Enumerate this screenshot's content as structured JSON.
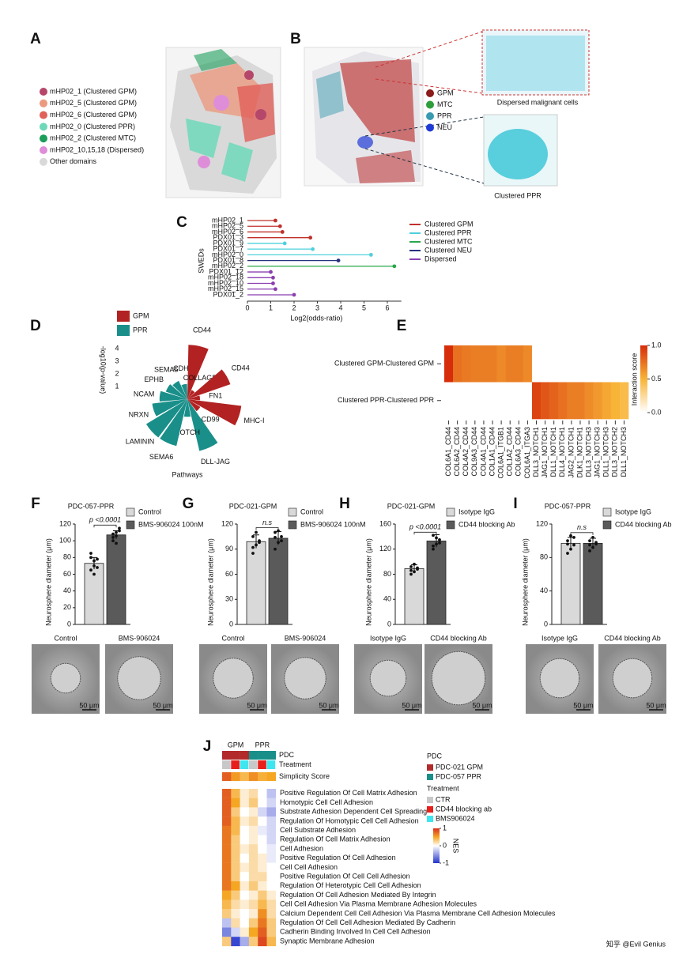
{
  "panel_labels": [
    "A",
    "B",
    "C",
    "D",
    "E",
    "F",
    "G",
    "H",
    "I",
    "J"
  ],
  "panel_a": {
    "legend": [
      {
        "label": "mHP02_1 (Clustered GPM)",
        "color": "#b5476b"
      },
      {
        "label": "mHP02_5 (Clustered GPM)",
        "color": "#eb9a7f"
      },
      {
        "label": "mHP02_6 (Clustered GPM)",
        "color": "#e0605a"
      },
      {
        "label": "mHP02_0 (Clustered PPR)",
        "color": "#6fd8b9"
      },
      {
        "label": "mHP02_2 (Clustered MTC)",
        "color": "#1a9e5a"
      },
      {
        "label": "mHP02_10,15,18 (Dispersed)",
        "color": "#de8ed8"
      },
      {
        "label": "Other domains",
        "color": "#d9d9d9"
      }
    ]
  },
  "panel_b": {
    "legend": [
      {
        "label": "GPM",
        "color": "#8b1a1a"
      },
      {
        "label": "MTC",
        "color": "#2e9e3a"
      },
      {
        "label": "PPR",
        "color": "#3a9bb0"
      },
      {
        "label": "NEU",
        "color": "#1f3bd6"
      }
    ],
    "zoom_captions": [
      "Dispersed malignant cells",
      "Clustered PPR"
    ]
  },
  "chart_data": [
    {
      "type": "lollipop",
      "y_label": "SWEDs",
      "x_label": "Log2(odds-ratio)",
      "categories": [
        "mHP02_1",
        "mHP02_5",
        "mHP02_6",
        "PDX01_3",
        "PDX01_9",
        "PDX01_7",
        "mHP02_0",
        "PDX01_8",
        "mHP02_2",
        "PDX01_12",
        "mHP02_18",
        "mHP02_10",
        "mHP02_15",
        "PDX01_2"
      ],
      "series": [
        {
          "name": "Clustered GPM",
          "color": "#c0302b",
          "values": [
            1.2,
            1.4,
            1.5,
            2.7,
            null,
            null,
            null,
            null,
            null,
            null,
            null,
            null,
            null,
            null
          ]
        },
        {
          "name": "Clustered PPR",
          "color": "#4fd0dc",
          "values": [
            null,
            null,
            null,
            null,
            1.6,
            2.8,
            5.3,
            null,
            null,
            null,
            null,
            null,
            null,
            null
          ]
        },
        {
          "name": "Clustered MTC",
          "color": "#2aa84a",
          "values": [
            null,
            null,
            null,
            null,
            null,
            null,
            null,
            null,
            6.3,
            null,
            null,
            null,
            null,
            null
          ]
        },
        {
          "name": "Clustered NEU",
          "color": "#27327f",
          "values": [
            null,
            null,
            null,
            null,
            null,
            null,
            null,
            3.9,
            null,
            null,
            null,
            null,
            null,
            null
          ]
        },
        {
          "name": "Dispersed",
          "color": "#8a3fb0",
          "values": [
            null,
            null,
            null,
            null,
            null,
            null,
            null,
            null,
            null,
            1.0,
            1.1,
            1.1,
            1.2,
            2.0
          ]
        }
      ],
      "xlim": [
        0,
        6.6
      ],
      "xticks": [
        0,
        1,
        2,
        3,
        4,
        5,
        6
      ]
    },
    {
      "type": "radial_bar",
      "y_label": "-log10(p-value)",
      "x_label": "Pathways",
      "groups": [
        {
          "name": "GPM",
          "color": "#b22222"
        },
        {
          "name": "PPR",
          "color": "#1a8f8a"
        }
      ],
      "categories": [
        "CD44",
        "COLLAGEN",
        "CD44",
        "FN1",
        "MHC-I",
        "CD99",
        "DLL-JAG",
        "NOTCH",
        "SEMA6",
        "LAMININ",
        "NRXN",
        "NCAM",
        "EPHB",
        "SEMA5",
        "CDH"
      ],
      "group_index": [
        0,
        0,
        0,
        0,
        0,
        0,
        1,
        1,
        1,
        1,
        1,
        1,
        1,
        1,
        1
      ],
      "values": [
        4.3,
        0.8,
        3.6,
        1.0,
        4.3,
        1.2,
        4.2,
        1.4,
        3.8,
        3.8,
        2.8,
        2.2,
        1.8,
        1.6,
        1.2
      ],
      "ylim": [
        0,
        4
      ],
      "yticks": [
        1,
        2,
        3,
        4
      ]
    },
    {
      "type": "heatmap",
      "rows": [
        "Clustered GPM-Clustered GPM",
        "Clustered PPR-Clustered PPR"
      ],
      "columns": [
        "COL6A1_CD44",
        "COL6A2_CD44",
        "COL4A2_CD44",
        "COL9A3_CD44",
        "COL4A1_CD44",
        "COL1A1_CD44",
        "COL6A1_ITGB1",
        "COL1A2_CD44",
        "COL6A3_CD44",
        "COL6A1_ITGA3",
        "DLL3_NOTCH1",
        "JAG1_NOTCH1",
        "DLL1_NOTCH1",
        "DLL4_NOTCH1",
        "JAG2_NOTCH1",
        "DLK1_NOTCH1",
        "DLL3_NOTCH3",
        "JAG1_NOTCH3",
        "DLL1_NOTCH3",
        "DLL3_NOTCH2",
        "DLL1_NOTCH3"
      ],
      "values": [
        [
          1.0,
          0.75,
          0.72,
          0.7,
          0.7,
          0.7,
          0.66,
          0.7,
          0.7,
          0.66,
          0,
          0,
          0,
          0,
          0,
          0,
          0,
          0,
          0,
          0,
          0
        ],
        [
          0,
          0,
          0,
          0,
          0,
          0,
          0,
          0,
          0,
          0,
          0.92,
          0.85,
          0.8,
          0.75,
          0.7,
          0.7,
          0.65,
          0.6,
          0.55,
          0.5,
          0.45
        ]
      ],
      "colorbar_label": "Interaction score",
      "clim": [
        0,
        1
      ],
      "cticks": [
        {
          "value": 1,
          "label": "1.0"
        },
        {
          "value": 0.5,
          "label": "0.5"
        },
        {
          "value": 0,
          "label": "0.0"
        }
      ]
    },
    {
      "type": "bar",
      "title": "PDC-057-PPR",
      "y_label": "Neurosphere diameter (μm)",
      "categories": [
        "Control",
        "BMS-906024 100nM"
      ],
      "colors": [
        "#d9d9d9",
        "#5a5a5a"
      ],
      "values": [
        73,
        107
      ],
      "errors": [
        7,
        5
      ],
      "points": [
        [
          65,
          60,
          78,
          85,
          70,
          68,
          80,
          76
        ],
        [
          100,
          110,
          112,
          104,
          97,
          115,
          108,
          106
        ]
      ],
      "annotation": "p <0.0001",
      "ylim": [
        0,
        120
      ],
      "yticks": [
        0,
        20,
        40,
        60,
        80,
        100,
        120
      ],
      "image_captions": [
        "Control",
        "BMS-906024"
      ],
      "scale_bar": "50 μm"
    },
    {
      "type": "bar",
      "title": "PDC-021-GPM",
      "y_label": "Neurosphere diameter (μm)",
      "categories": [
        "Control",
        "BMS-906024 100nM"
      ],
      "colors": [
        "#d9d9d9",
        "#5a5a5a"
      ],
      "values": [
        99,
        103
      ],
      "errors": [
        8,
        8
      ],
      "points": [
        [
          85,
          95,
          100,
          105,
          110,
          98,
          92
        ],
        [
          90,
          98,
          105,
          110,
          112,
          100,
          104
        ]
      ],
      "annotation": "n.s",
      "ylim": [
        0,
        120
      ],
      "yticks": [
        0,
        30,
        60,
        90,
        120
      ],
      "image_captions": [
        "Control",
        "BMS-906024"
      ],
      "scale_bar": "50 μm"
    },
    {
      "type": "bar",
      "title": "PDC-021-GPM",
      "y_label": "Neurosphere diameter (μm)",
      "categories": [
        "Isotype IgG",
        "CD44 blocking Ab"
      ],
      "colors": [
        "#d9d9d9",
        "#5a5a5a"
      ],
      "values": [
        89,
        133
      ],
      "errors": [
        6,
        10
      ],
      "points": [
        [
          80,
          84,
          88,
          92,
          96,
          90,
          86
        ],
        [
          120,
          128,
          135,
          142,
          138,
          130,
          125
        ]
      ],
      "annotation": "p <0.0001",
      "ylim": [
        0,
        160
      ],
      "yticks": [
        0,
        40,
        80,
        120,
        160
      ],
      "image_captions": [
        "Isotype IgG",
        "CD44 blocking Ab"
      ],
      "scale_bar": "50 μm"
    },
    {
      "type": "bar",
      "title": "PDC-057-PPR",
      "y_label": "Neurosphere diameter (μm)",
      "categories": [
        "Isotype IgG",
        "CD44 blocking Ab"
      ],
      "colors": [
        "#d9d9d9",
        "#5a5a5a"
      ],
      "values": [
        97,
        97
      ],
      "errors": [
        7,
        6
      ],
      "points": [
        [
          85,
          90,
          95,
          100,
          106,
          104,
          96
        ],
        [
          88,
          92,
          96,
          100,
          104,
          98,
          95
        ]
      ],
      "annotation": "n.s",
      "ylim": [
        0,
        120
      ],
      "yticks": [
        0,
        40,
        80,
        120
      ],
      "image_captions": [
        "Isotype IgG",
        "CD44 blocking Ab"
      ],
      "scale_bar": "50 μm"
    },
    {
      "type": "annotated_heatmap",
      "column_groups": [
        "GPM",
        "PPR"
      ],
      "annotation_rows": [
        "PDC",
        "Treatment",
        "Simplicity Score"
      ],
      "pdc": [
        0,
        0,
        0,
        1,
        1,
        1
      ],
      "treatment": [
        0,
        1,
        2,
        0,
        1,
        2
      ],
      "simplicity_score": [
        0.8,
        0.55,
        0.4,
        0.6,
        0.45,
        0.5
      ],
      "rows": [
        "Positive Regulation Of Cell Matrix Adhesion",
        "Homotypic Cell Cell Adhesion",
        "Substrate Adhesion Dependent Cell Spreading",
        "Regulation Of Homotypic Cell Cell Adhesion",
        "Cell Substrate Adhesion",
        "Regulation Of Cell Matrix Adhesion",
        "Cell Adhesion",
        "Positive Regulation Of Cell Adhesion",
        "Cell Cell Adhesion",
        "Positive Regulation Of Cell Cell Adhesion",
        "Regulation Of Heterotypic Cell Cell Adhesion",
        "Regulation Of Cell Adhesion Mediated By Integrin",
        "Cell Cell Adhesion Via Plasma Membrane Adhesion Molecules",
        "Calcium Dependent Cell Cell Adhesion Via Plasma Membrane Cell Adhesion Molecules",
        "Regulation Of Cell Cell Adhesion Mediated By Cadherin",
        "Cadherin Binding Involved In Cell Cell Adhesion",
        "Synaptic Membrane Adhesion"
      ],
      "values": [
        [
          0.8,
          0.4,
          0.1,
          0.2,
          0.0,
          -0.3
        ],
        [
          0.8,
          0.5,
          0.1,
          0.3,
          0.0,
          -0.2
        ],
        [
          0.8,
          0.3,
          0.0,
          0.1,
          -0.2,
          -0.4
        ],
        [
          0.8,
          0.4,
          0.1,
          0.2,
          0.0,
          -0.2
        ],
        [
          0.7,
          0.4,
          0.0,
          0.1,
          -0.1,
          -0.2
        ],
        [
          0.7,
          0.3,
          0.0,
          0.1,
          0.0,
          -0.2
        ],
        [
          0.7,
          0.3,
          0.1,
          0.2,
          0.0,
          -0.1
        ],
        [
          0.7,
          0.3,
          0.0,
          0.2,
          0.1,
          -0.1
        ],
        [
          0.7,
          0.3,
          0.1,
          0.2,
          0.1,
          0.0
        ],
        [
          0.7,
          0.3,
          0.0,
          0.2,
          0.2,
          0.0
        ],
        [
          0.7,
          0.5,
          0.1,
          0.3,
          0.1,
          0.0
        ],
        [
          0.5,
          0.3,
          0.0,
          0.1,
          0.3,
          0.1
        ],
        [
          0.4,
          0.2,
          0.1,
          0.2,
          0.4,
          0.2
        ],
        [
          0.3,
          0.1,
          0.0,
          0.1,
          0.6,
          0.2
        ],
        [
          -0.3,
          0.2,
          0.0,
          0.3,
          0.7,
          0.3
        ],
        [
          -0.6,
          -0.2,
          0.1,
          0.5,
          0.8,
          0.3
        ],
        [
          0.3,
          -0.9,
          -0.4,
          0.3,
          0.9,
          0.4
        ]
      ],
      "pdc_title": "PDC",
      "pdc_legend": [
        {
          "label": "PDC-021 GPM",
          "color": "#b22a2a"
        },
        {
          "label": "PDC-057 PPR",
          "color": "#1a8f8a"
        }
      ],
      "treatment_title": "Treatment",
      "treatment_legend": [
        {
          "label": "CTR",
          "color": "#c8c8c8"
        },
        {
          "label": "CD44 blocking ab",
          "color": "#e8201c"
        },
        {
          "label": "BMS906024",
          "color": "#3ee6f0"
        }
      ],
      "colorbar_label": "NES",
      "clim": [
        -1,
        1
      ],
      "cticks": [
        1,
        0,
        -1
      ]
    }
  ],
  "watermark": "知乎 @Evil Genius"
}
